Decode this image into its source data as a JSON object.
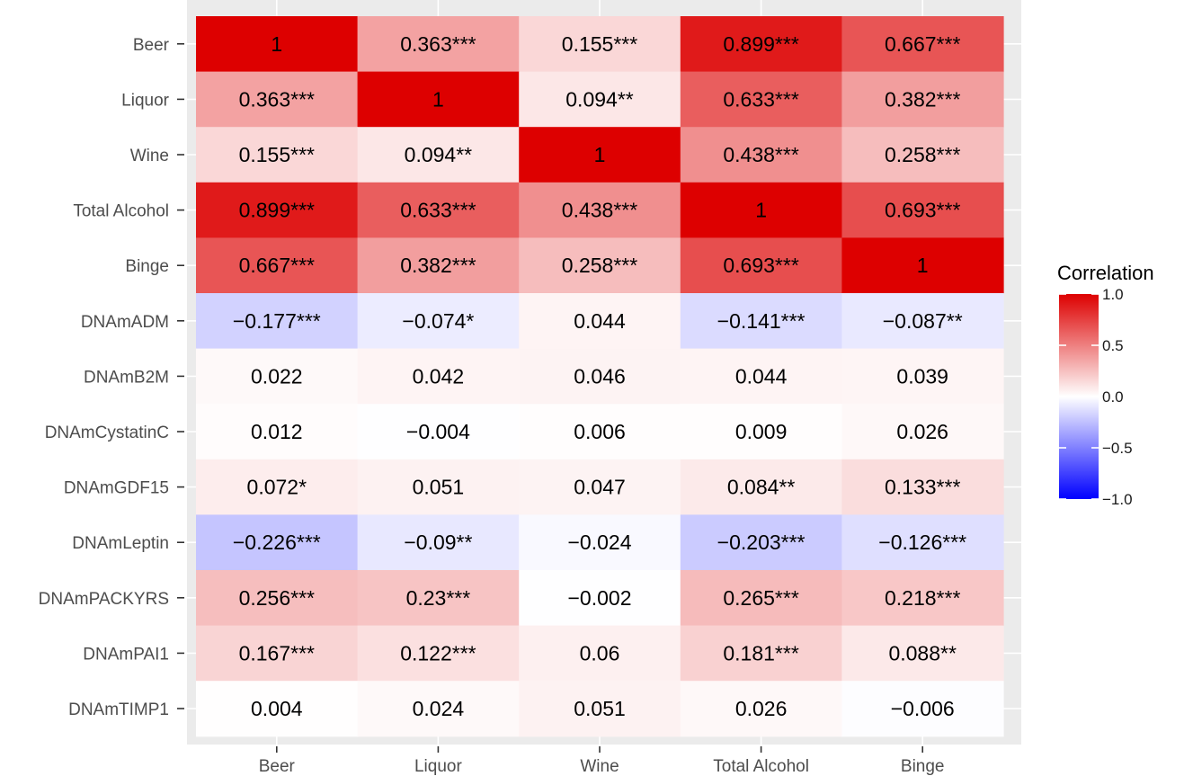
{
  "chart_data": {
    "type": "heatmap",
    "x_categories": [
      "Beer",
      "Liquor",
      "Wine",
      "Total Alcohol",
      "Binge"
    ],
    "y_categories": [
      "Beer",
      "Liquor",
      "Wine",
      "Total Alcohol",
      "Binge",
      "DNAmADM",
      "DNAmB2M",
      "DNAmCystatinC",
      "DNAmGDF15",
      "DNAmLeptin",
      "DNAmPACKYRS",
      "DNAmPAI1",
      "DNAmTIMP1"
    ],
    "values": [
      [
        1,
        0.363,
        0.155,
        0.899,
        0.667
      ],
      [
        0.363,
        1,
        0.094,
        0.633,
        0.382
      ],
      [
        0.155,
        0.094,
        1,
        0.438,
        0.258
      ],
      [
        0.899,
        0.633,
        0.438,
        1,
        0.693
      ],
      [
        0.667,
        0.382,
        0.258,
        0.693,
        1
      ],
      [
        -0.177,
        -0.074,
        0.044,
        -0.141,
        -0.087
      ],
      [
        0.022,
        0.042,
        0.046,
        0.044,
        0.039
      ],
      [
        0.012,
        -0.004,
        0.006,
        0.009,
        0.026
      ],
      [
        0.072,
        0.051,
        0.047,
        0.084,
        0.133
      ],
      [
        -0.226,
        -0.09,
        -0.024,
        -0.203,
        -0.126
      ],
      [
        0.256,
        0.23,
        -0.002,
        0.265,
        0.218
      ],
      [
        0.167,
        0.122,
        0.06,
        0.181,
        0.088
      ],
      [
        0.004,
        0.024,
        0.051,
        0.026,
        -0.006
      ]
    ],
    "labels": [
      [
        "1",
        "0.363***",
        "0.155***",
        "0.899***",
        "0.667***"
      ],
      [
        "0.363***",
        "1",
        "0.094**",
        "0.633***",
        "0.382***"
      ],
      [
        "0.155***",
        "0.094**",
        "1",
        "0.438***",
        "0.258***"
      ],
      [
        "0.899***",
        "0.633***",
        "0.438***",
        "1",
        "0.693***"
      ],
      [
        "0.667***",
        "0.382***",
        "0.258***",
        "0.693***",
        "1"
      ],
      [
        "−0.177***",
        "−0.074*",
        "0.044",
        "−0.141***",
        "−0.087**"
      ],
      [
        "0.022",
        "0.042",
        "0.046",
        "0.044",
        "0.039"
      ],
      [
        "0.012",
        "−0.004",
        "0.006",
        "0.009",
        "0.026"
      ],
      [
        "0.072*",
        "0.051",
        "0.047",
        "0.084**",
        "0.133***"
      ],
      [
        "−0.226***",
        "−0.09**",
        "−0.024",
        "−0.203***",
        "−0.126***"
      ],
      [
        "0.256***",
        "0.23***",
        "−0.002",
        "0.265***",
        "0.218***"
      ],
      [
        "0.167***",
        "0.122***",
        "0.06",
        "0.181***",
        "0.088**"
      ],
      [
        "0.004",
        "0.024",
        "0.051",
        "0.026",
        "−0.006"
      ]
    ],
    "legend": {
      "title": "Correlation",
      "ticks": [
        "1.0",
        "0.5",
        "0.0",
        "−0.5",
        "−1.0"
      ],
      "tick_values": [
        1.0,
        0.5,
        0.0,
        -0.5,
        -1.0
      ],
      "range": [
        -1.0,
        1.0
      ],
      "placement": "right"
    },
    "colors": {
      "high": "#dd0000",
      "mid": "#ffffff",
      "low": "#0000ff",
      "panel_background": "#ebebeb"
    }
  }
}
